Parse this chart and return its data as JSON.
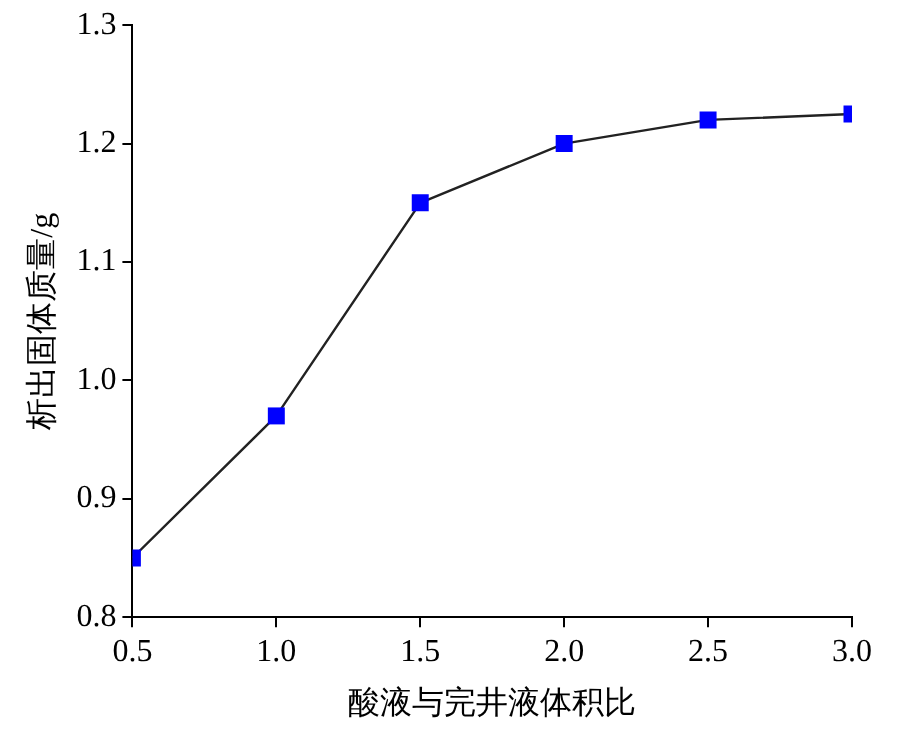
{
  "chart_data": {
    "type": "line",
    "xlabel": "酸液与完井液体积比",
    "ylabel": "析出固体质量/g",
    "x": [
      0.5,
      1.0,
      1.5,
      2.0,
      2.5,
      3.0
    ],
    "series": [
      {
        "color": "#0000ff",
        "values": [
          0.85,
          0.97,
          1.15,
          1.2,
          1.22,
          1.225
        ]
      }
    ],
    "xlim": [
      0.5,
      3.0
    ],
    "xticks": [
      0.5,
      {
        "value": 1,
        "label": "1.0"
      },
      1.5,
      {
        "value": 2,
        "label": "2.0"
      },
      2.5,
      {
        "value": 3,
        "label": "3.0"
      }
    ],
    "ylim": [
      0.8,
      1.3
    ],
    "yticks": [
      0.8,
      0.9,
      {
        "value": 1,
        "label": "1.0"
      },
      1.1,
      1.2,
      1.3
    ],
    "grid": false,
    "legend": false,
    "marker": "square",
    "line_style": "solid"
  }
}
